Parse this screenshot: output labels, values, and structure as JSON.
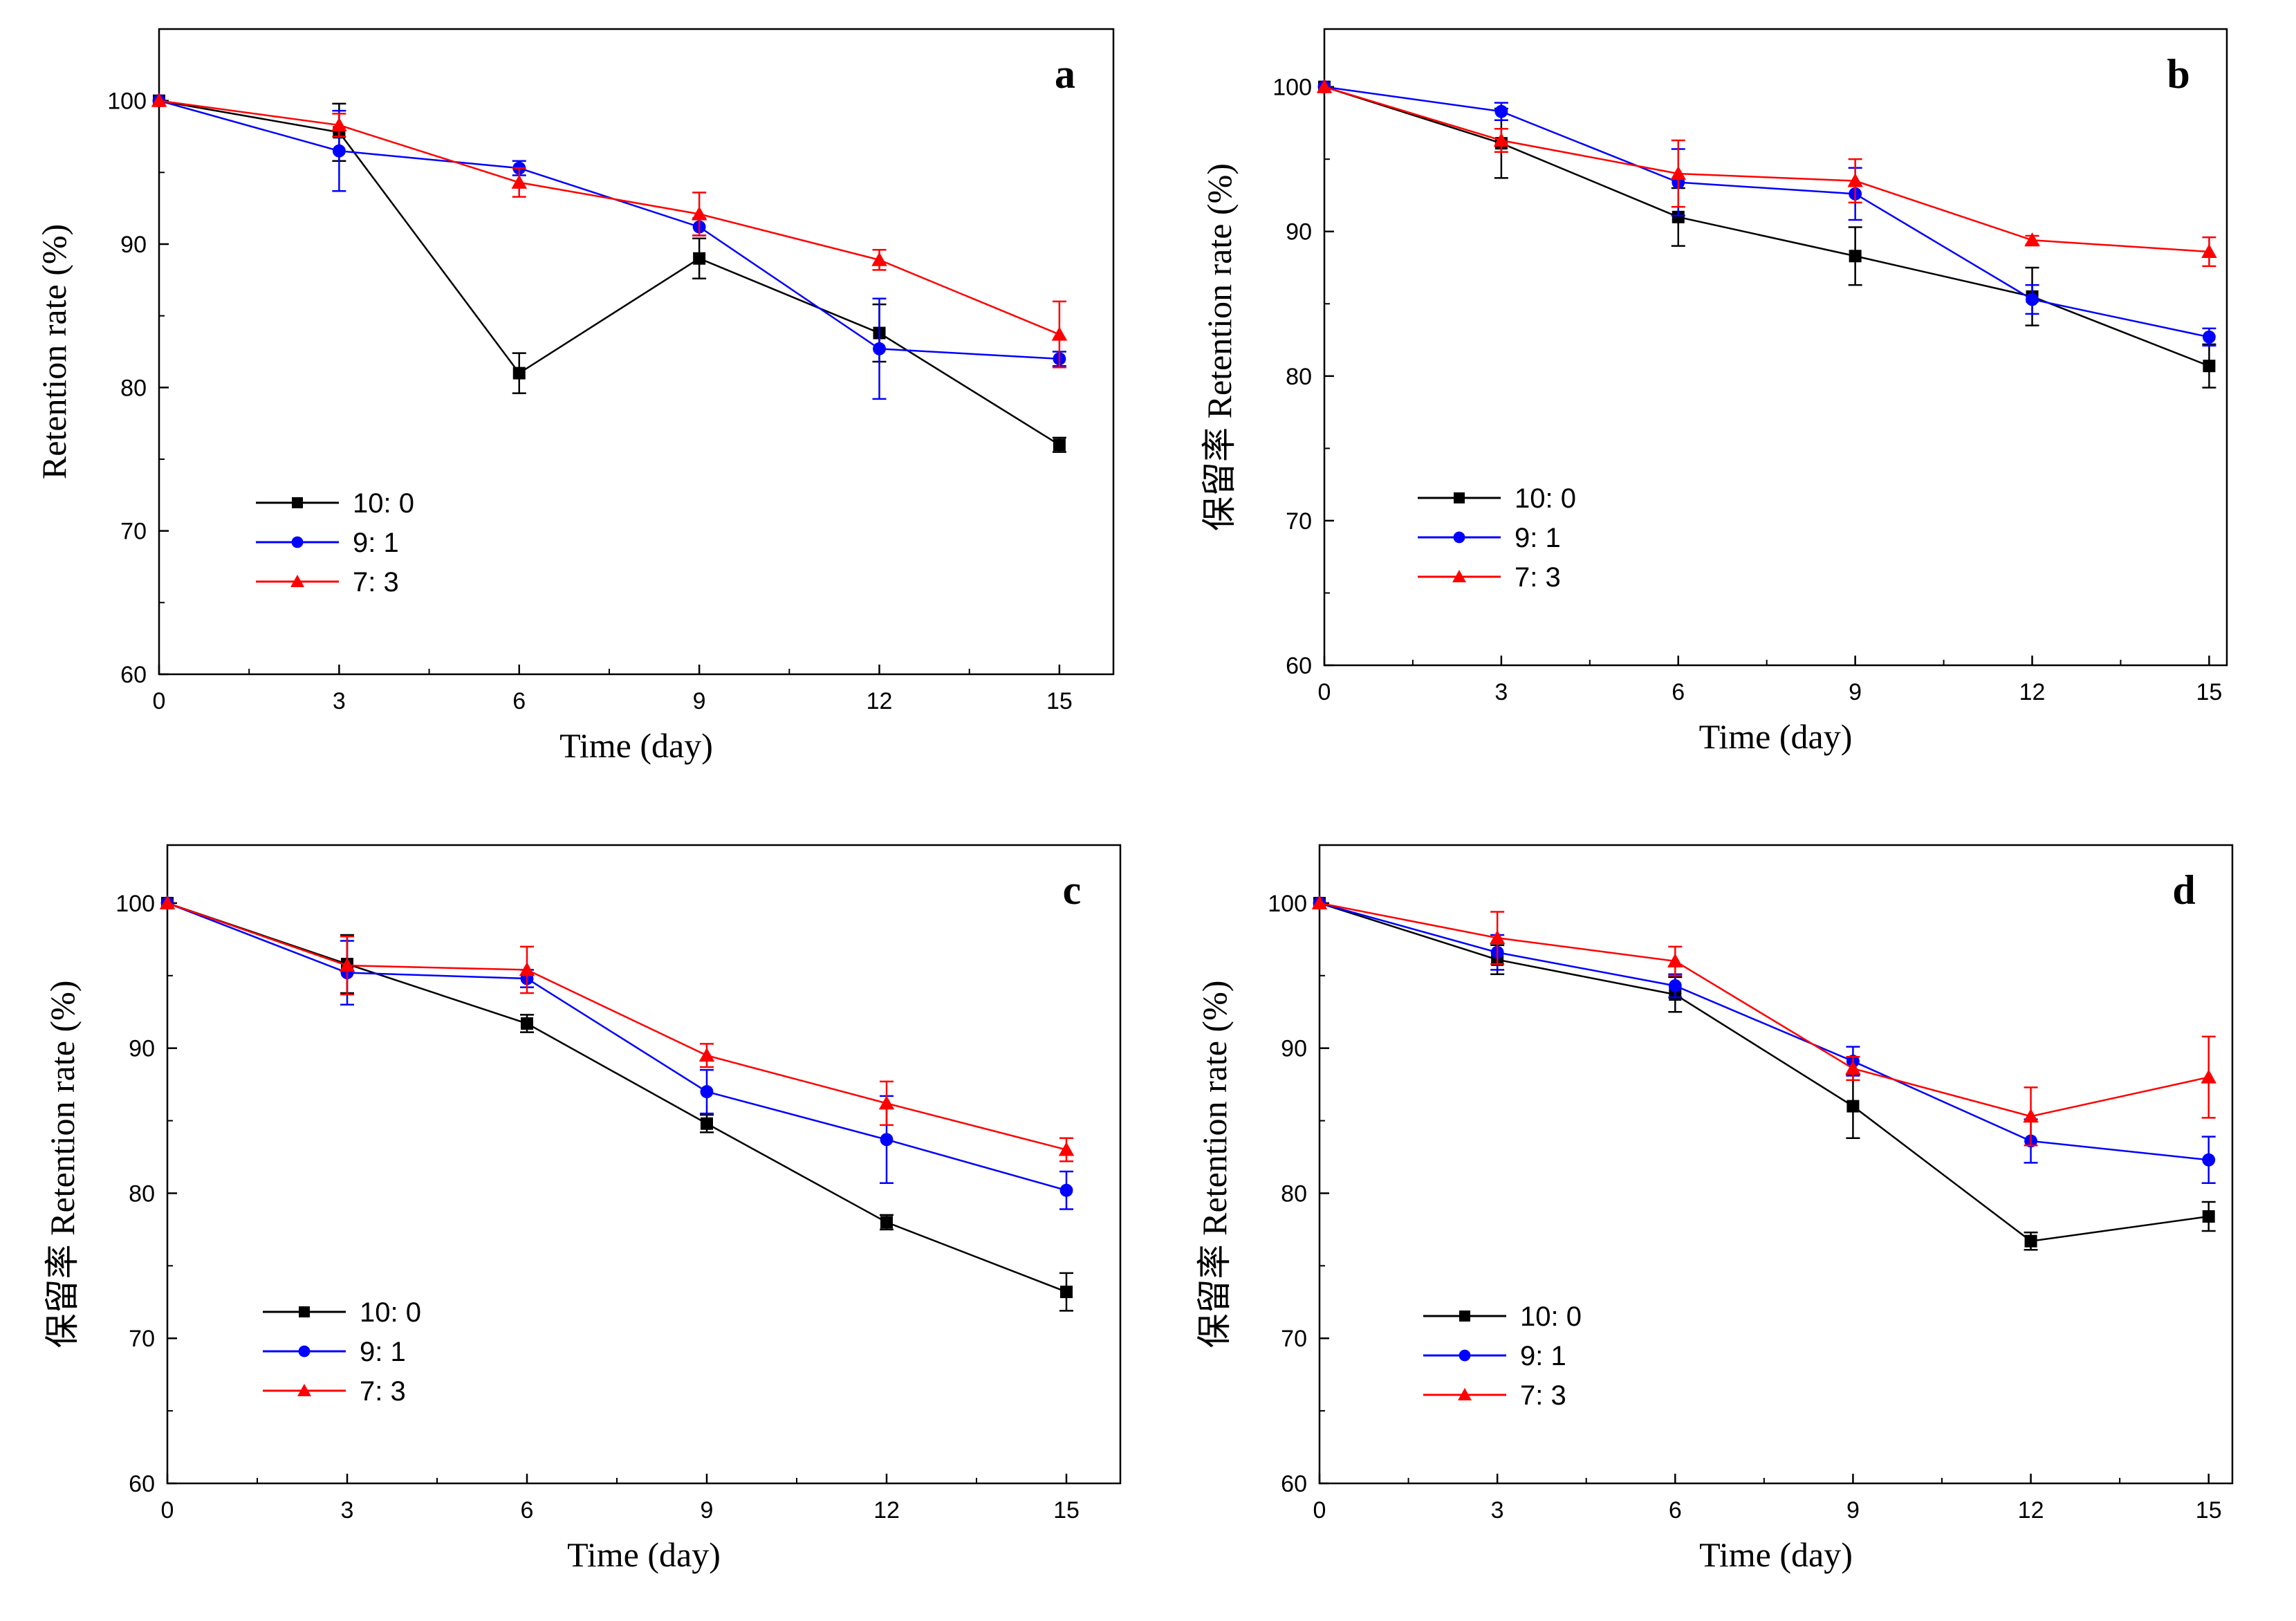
{
  "chart_data": [
    {
      "panel": "a",
      "type": "line",
      "xlabel": "Time (day)",
      "ylabel": "Retention rate (%)",
      "xlim": [
        0,
        15.9
      ],
      "ylim": [
        60,
        105
      ],
      "xticks": [
        0,
        3,
        6,
        9,
        12,
        15
      ],
      "yticks": [
        60,
        70,
        80,
        90,
        100
      ],
      "legend_position": "bottom-left",
      "x": [
        0,
        3,
        6,
        9,
        12,
        15
      ],
      "series": [
        {
          "name": "10: 0",
          "color": "#000000",
          "marker": "square",
          "values": [
            100,
            97.8,
            81.0,
            89.0,
            83.8,
            76.0
          ],
          "errors": [
            0,
            2.0,
            1.4,
            1.4,
            2.0,
            0.5
          ]
        },
        {
          "name": "9: 1",
          "color": "#0000ff",
          "marker": "circle",
          "values": [
            100,
            96.5,
            95.3,
            91.2,
            82.7,
            82.0
          ],
          "errors": [
            0,
            2.8,
            0.5,
            0.6,
            3.5,
            0.5
          ]
        },
        {
          "name": "7: 3",
          "color": "#ff0000",
          "marker": "triangle",
          "values": [
            100,
            98.3,
            94.3,
            92.1,
            88.9,
            83.7
          ],
          "errors": [
            0,
            0.8,
            1.0,
            1.5,
            0.7,
            2.3
          ]
        }
      ]
    },
    {
      "panel": "b",
      "type": "line",
      "xlabel": "Time (day)",
      "ylabel": "保留率 Retention rate (%)",
      "xlim": [
        0,
        15.3
      ],
      "ylim": [
        60,
        104
      ],
      "xticks": [
        0,
        3,
        6,
        9,
        12,
        15
      ],
      "yticks": [
        60,
        70,
        80,
        90,
        100
      ],
      "legend_position": "bottom-left",
      "x": [
        0,
        3,
        6,
        9,
        12,
        15
      ],
      "series": [
        {
          "name": "10: 0",
          "color": "#000000",
          "marker": "square",
          "values": [
            100,
            96.1,
            91.0,
            88.3,
            85.5,
            80.7
          ],
          "errors": [
            0,
            2.4,
            2.0,
            2.0,
            2.0,
            1.5
          ]
        },
        {
          "name": "9: 1",
          "color": "#0000ff",
          "marker": "circle",
          "values": [
            100,
            98.3,
            93.4,
            92.6,
            85.3,
            82.7
          ],
          "errors": [
            0,
            0.6,
            2.3,
            1.8,
            1.0,
            0.6
          ]
        },
        {
          "name": "7: 3",
          "color": "#ff0000",
          "marker": "triangle",
          "values": [
            100,
            96.3,
            94.0,
            93.5,
            89.4,
            88.6
          ],
          "errors": [
            0,
            0.8,
            2.3,
            1.5,
            0.3,
            1.0
          ]
        }
      ]
    },
    {
      "panel": "c",
      "type": "line",
      "xlabel": "Time (day)",
      "ylabel": "保留率 Retention rate (%)",
      "xlim": [
        0,
        15.9
      ],
      "ylim": [
        60,
        104
      ],
      "xticks": [
        0,
        3,
        6,
        9,
        12,
        15
      ],
      "yticks": [
        60,
        70,
        80,
        90,
        100
      ],
      "legend_position": "bottom-left",
      "x": [
        0,
        3,
        6,
        9,
        12,
        15
      ],
      "series": [
        {
          "name": "10: 0",
          "color": "#000000",
          "marker": "square",
          "values": [
            100,
            95.8,
            91.7,
            84.8,
            78.0,
            73.2
          ],
          "errors": [
            0,
            2.0,
            0.6,
            0.6,
            0.5,
            1.3
          ]
        },
        {
          "name": "9: 1",
          "color": "#0000ff",
          "marker": "circle",
          "values": [
            100,
            95.2,
            94.8,
            87.0,
            83.7,
            80.2
          ],
          "errors": [
            0,
            2.2,
            0.6,
            1.5,
            3.0,
            1.3
          ]
        },
        {
          "name": "7: 3",
          "color": "#ff0000",
          "marker": "triangle",
          "values": [
            100,
            95.7,
            95.4,
            89.5,
            86.2,
            83.0
          ],
          "errors": [
            0,
            2.0,
            1.6,
            0.8,
            1.5,
            0.8
          ]
        }
      ]
    },
    {
      "panel": "d",
      "type": "line",
      "xlabel": "Time (day)",
      "ylabel": "保留率 Retention rate (%)",
      "xlim": [
        0,
        15.4
      ],
      "ylim": [
        60,
        104
      ],
      "xticks": [
        0,
        3,
        6,
        9,
        12,
        15
      ],
      "yticks": [
        60,
        70,
        80,
        90,
        100
      ],
      "legend_position": "bottom-left",
      "x": [
        0,
        3,
        6,
        9,
        12,
        15
      ],
      "series": [
        {
          "name": "10: 0",
          "color": "#000000",
          "marker": "square",
          "values": [
            100,
            96.1,
            93.7,
            86.0,
            76.7,
            78.4
          ],
          "errors": [
            0,
            1.0,
            1.2,
            2.2,
            0.6,
            1.0
          ]
        },
        {
          "name": "9: 1",
          "color": "#0000ff",
          "marker": "circle",
          "values": [
            100,
            96.6,
            94.3,
            89.1,
            83.6,
            82.3
          ],
          "errors": [
            0,
            1.2,
            0.8,
            1.0,
            1.5,
            1.6
          ]
        },
        {
          "name": "7: 3",
          "color": "#ff0000",
          "marker": "triangle",
          "values": [
            100,
            97.6,
            96.0,
            88.6,
            85.3,
            88.0
          ],
          "errors": [
            0,
            1.8,
            1.0,
            0.8,
            2.0,
            2.8
          ]
        }
      ]
    }
  ]
}
